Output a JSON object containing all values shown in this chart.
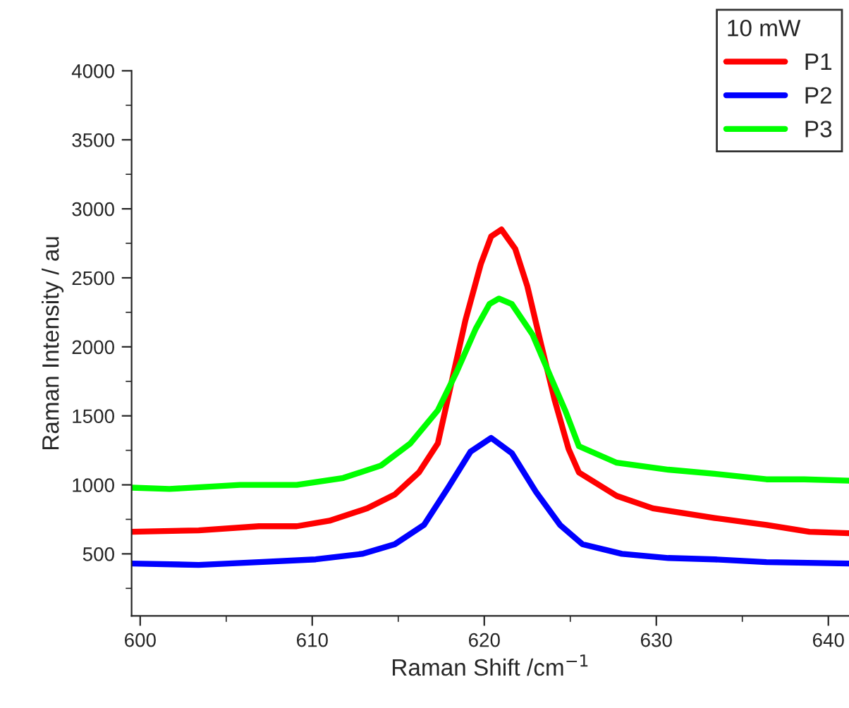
{
  "chart_data": {
    "type": "line",
    "xlabel": "Raman Shift /cm$^{−1}$",
    "ylabel": "Raman Intensity / au",
    "legend_title": "10 mW",
    "legend": "top right",
    "grid": false,
    "marker": "none",
    "line_style": "solid",
    "xlim": [
      599.5,
      641.2
    ],
    "xticks": [
      600,
      610,
      620,
      630,
      640
    ],
    "ylim": [
      50,
      4000
    ],
    "yticks": [
      500,
      1000,
      1500,
      2000,
      2500,
      3000,
      3500,
      4000
    ],
    "series": [
      {
        "name": "P1",
        "color": "#ff0000",
        "x": [
          599.5,
          603.4,
          606.9,
          609.1,
          611.0,
          613.2,
          614.8,
          616.2,
          617.3,
          618.9,
          619.8,
          620.4,
          621.0,
          621.8,
          622.5,
          623.3,
          624.1,
          624.9,
          625.5,
          627.7,
          629.8,
          633.4,
          636.4,
          638.9,
          641.2
        ],
        "values": [
          660,
          670,
          700,
          700,
          740,
          830,
          930,
          1090,
          1300,
          2190,
          2600,
          2800,
          2850,
          2710,
          2440,
          2020,
          1610,
          1260,
          1090,
          920,
          830,
          760,
          710,
          660,
          650
        ]
      },
      {
        "name": "P2",
        "color": "#0000ff",
        "x": [
          599.5,
          603.4,
          606.9,
          610.2,
          612.9,
          614.8,
          616.5,
          617.9,
          619.2,
          620.4,
          621.6,
          623.0,
          624.4,
          625.7,
          628.0,
          630.7,
          633.4,
          636.4,
          641.2
        ],
        "values": [
          430,
          420,
          440,
          460,
          500,
          570,
          710,
          980,
          1240,
          1340,
          1230,
          950,
          710,
          570,
          500,
          470,
          460,
          440,
          430
        ]
      },
      {
        "name": "P3",
        "color": "#00ff00",
        "x": [
          599.5,
          601.7,
          605.8,
          609.1,
          611.8,
          614.0,
          615.7,
          617.3,
          618.4,
          619.5,
          620.3,
          620.85,
          621.6,
          622.8,
          623.9,
          624.7,
          625.5,
          627.7,
          630.7,
          633.4,
          636.4,
          638.6,
          641.2
        ],
        "values": [
          980,
          970,
          1000,
          1000,
          1050,
          1140,
          1300,
          1540,
          1820,
          2130,
          2310,
          2350,
          2310,
          2090,
          1770,
          1540,
          1280,
          1160,
          1110,
          1080,
          1040,
          1040,
          1030
        ]
      }
    ]
  }
}
